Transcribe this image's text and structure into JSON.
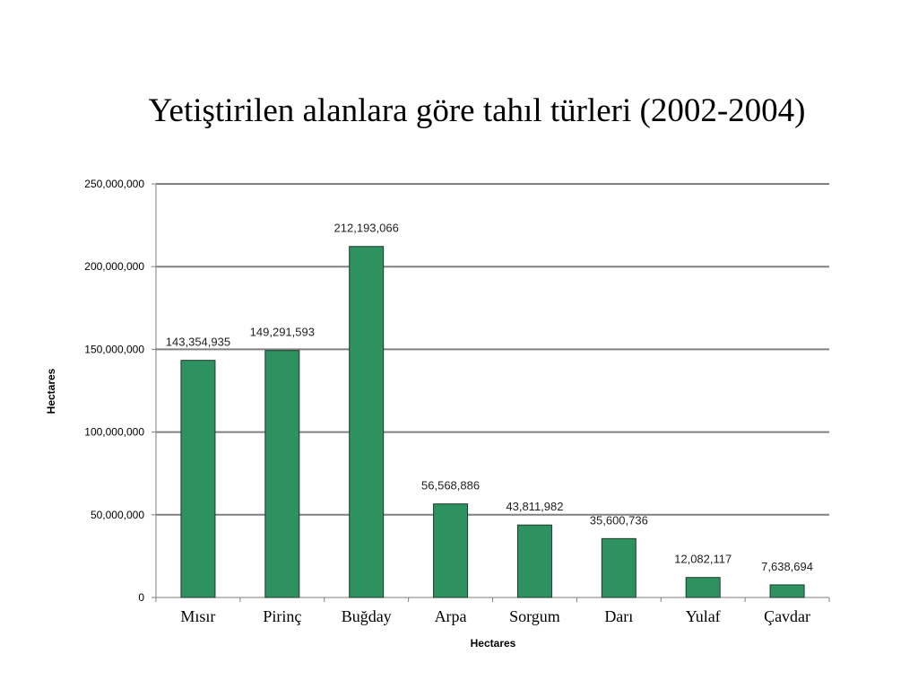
{
  "slide": {
    "title": "Yetiştirilen alanlara göre tahıl türleri (2002-2004)"
  },
  "chart_data": {
    "type": "bar",
    "categories": [
      "Mısır",
      "Pirinç",
      "Buğday",
      "Arpa",
      "Sorgum",
      "Darı",
      "Yulaf",
      "Çavdar"
    ],
    "values": [
      143354935,
      149291593,
      212193066,
      56568886,
      43811982,
      35600736,
      12082117,
      7638694
    ],
    "data_labels": [
      "143,354,935",
      "149,291,593",
      "212,193,066",
      "56,568,886",
      "43,811,982",
      "35,600,736",
      "12,082,117",
      "7,638,694"
    ],
    "y_ticks": [
      "0",
      "50,000,000",
      "100,000,000",
      "150,000,000",
      "200,000,000",
      "250,000,000"
    ],
    "xlabel": "Hectares",
    "ylabel": "Hectares",
    "ylim": [
      0,
      250000000
    ],
    "grid": true,
    "legend": "none",
    "bar_color": "#2e9160",
    "bar_edge_color": "#1c3d2b",
    "grid_color": "#808080"
  }
}
